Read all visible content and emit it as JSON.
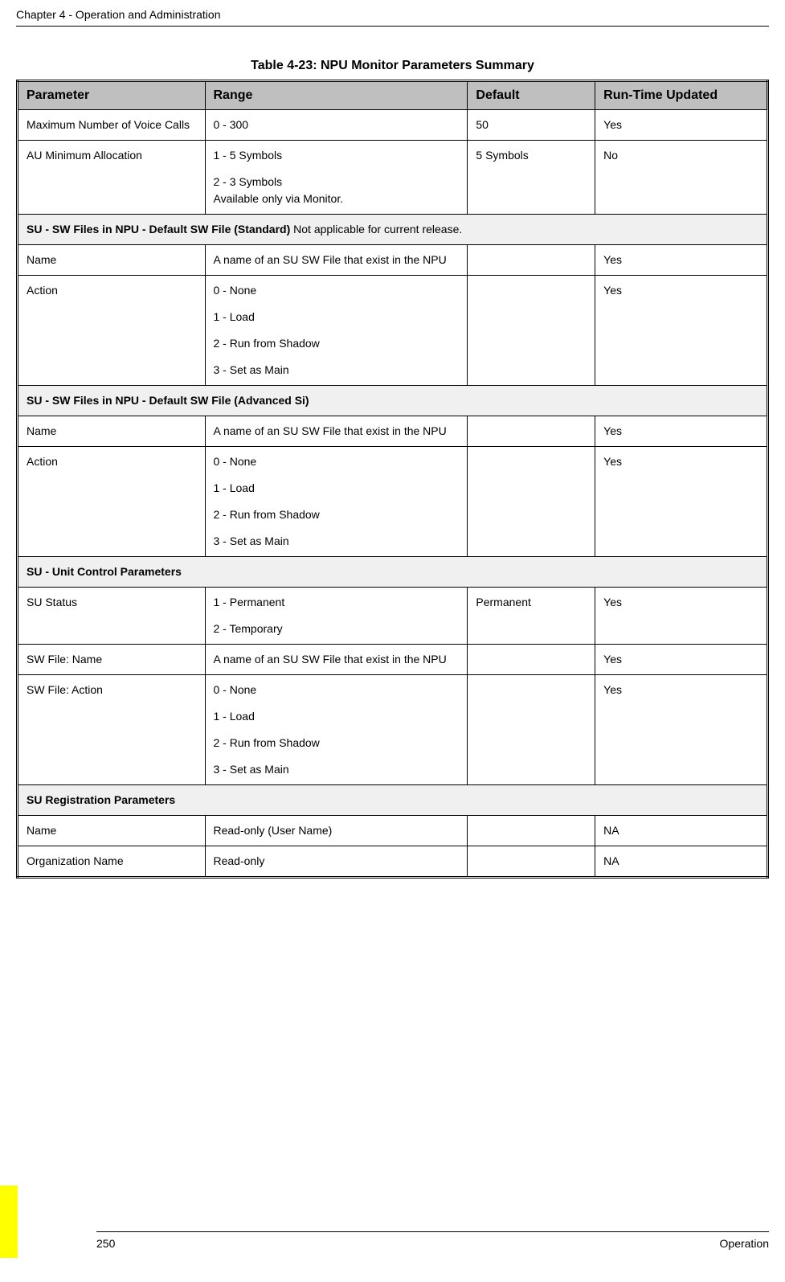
{
  "chapter_header": "Chapter 4 - Operation and Administration",
  "table_caption": "Table 4-23: NPU Monitor Parameters Summary",
  "headers": {
    "parameter": "Parameter",
    "range": "Range",
    "default": "Default",
    "runtime": "Run-Time Updated"
  },
  "rows": [
    {
      "type": "data",
      "parameter": "Maximum Number of Voice Calls",
      "range_lines": [
        "0 - 300"
      ],
      "default": "50",
      "runtime": "Yes"
    },
    {
      "type": "data",
      "parameter": "AU Minimum Allocation",
      "range_lines": [
        "1 - 5 Symbols",
        "2 - 3 Symbols\nAvailable only via Monitor."
      ],
      "default": "5 Symbols",
      "runtime": "No"
    },
    {
      "type": "section",
      "title": "SU - SW Files in NPU - Default SW File (Standard)",
      "note": " Not applicable for current release."
    },
    {
      "type": "data",
      "parameter": "Name",
      "range_lines": [
        "A name of an SU SW File that exist in the NPU"
      ],
      "default": "",
      "runtime": "Yes"
    },
    {
      "type": "data",
      "parameter": "Action",
      "range_lines": [
        "0 - None",
        "1 - Load",
        "2 - Run from Shadow",
        "3 - Set as Main"
      ],
      "default": "",
      "runtime": "Yes"
    },
    {
      "type": "section",
      "title": "SU - SW Files in NPU - Default SW File (Advanced Si)",
      "note": ""
    },
    {
      "type": "data",
      "parameter": "Name",
      "range_lines": [
        "A name of an SU SW File that exist in the NPU"
      ],
      "default": "",
      "runtime": "Yes"
    },
    {
      "type": "data",
      "parameter": "Action",
      "range_lines": [
        "0 - None",
        "1 - Load",
        "2 - Run from Shadow",
        "3 - Set as Main"
      ],
      "default": "",
      "runtime": "Yes"
    },
    {
      "type": "section",
      "title": "SU - Unit Control Parameters",
      "note": ""
    },
    {
      "type": "data",
      "parameter": "SU Status",
      "range_lines": [
        "1 - Permanent",
        "2 - Temporary"
      ],
      "default": "Permanent",
      "runtime": "Yes"
    },
    {
      "type": "data",
      "parameter": "SW File: Name",
      "range_lines": [
        "A name of an SU SW File that exist in the NPU"
      ],
      "default": "",
      "runtime": "Yes"
    },
    {
      "type": "data",
      "parameter": "SW File: Action",
      "range_lines": [
        "0 - None",
        "1 - Load",
        "2 - Run from Shadow",
        "3 - Set as Main"
      ],
      "default": "",
      "runtime": "Yes"
    },
    {
      "type": "section",
      "title": "SU Registration Parameters",
      "note": ""
    },
    {
      "type": "data",
      "parameter": "Name",
      "range_lines": [
        "Read-only (User Name)"
      ],
      "default": "",
      "runtime": "NA"
    },
    {
      "type": "data",
      "parameter": "Organization Name",
      "range_lines": [
        "Read-only"
      ],
      "default": "",
      "runtime": "NA"
    }
  ],
  "footer": {
    "page_number": "250",
    "section": "Operation"
  },
  "colors": {
    "header_bg": "#bfbfbf",
    "section_bg": "#f0f0f0",
    "tab": "#ffff00"
  }
}
